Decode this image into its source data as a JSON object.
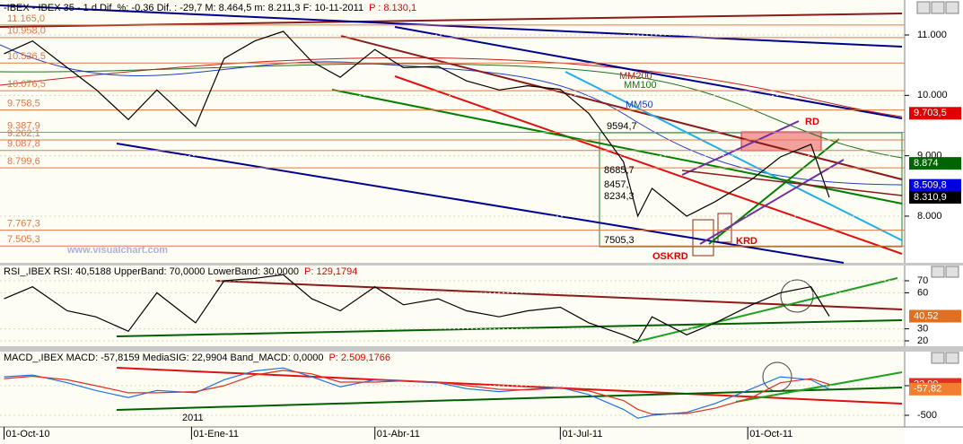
{
  "chart_data": [
    {
      "type": "line",
      "title": "-IBEX - IBEX 35 -   1 d Dif. %: -0,36 Dif. : -29,7 M: 8.464,5 m: 8.211,3 F: 10-11-2011",
      "title_p": "P : 8.130,1",
      "x": [
        "2010-10-01",
        "2010-10-15",
        "2010-11-01",
        "2010-11-15",
        "2010-12-01",
        "2010-12-15",
        "2011-01-03",
        "2011-01-17",
        "2011-02-01",
        "2011-02-15",
        "2011-03-01",
        "2011-03-15",
        "2011-04-01",
        "2011-04-15",
        "2011-05-02",
        "2011-05-16",
        "2011-06-01",
        "2011-06-15",
        "2011-07-01",
        "2011-07-15",
        "2011-08-01",
        "2011-08-08",
        "2011-08-15",
        "2011-09-01",
        "2011-09-15",
        "2011-10-03",
        "2011-10-17",
        "2011-11-01",
        "2011-11-10"
      ],
      "values": [
        10690,
        10900,
        10460,
        10100,
        9600,
        10090,
        9490,
        10610,
        10900,
        11060,
        10560,
        10300,
        10760,
        10460,
        10480,
        10240,
        10090,
        10160,
        10100,
        9700,
        8900,
        8000,
        8460,
        8000,
        8240,
        8610,
        8980,
        9190,
        8310
      ],
      "color": "#000000",
      "xlim": [
        "2010-09-29",
        "2011-12-17"
      ],
      "ylim": [
        7227,
        11312
      ],
      "yticks": [
        {
          "value": 11000,
          "label": "11.000"
        },
        {
          "value": 10000,
          "label": "10.000"
        },
        {
          "value": 9000,
          "label": "9.000"
        },
        {
          "value": 8000,
          "label": "8.000"
        }
      ],
      "level_color": "#e07848",
      "levels": [
        {
          "value": 11165,
          "label": "11.165,0"
        },
        {
          "value": 10958,
          "label": "10.958,0"
        },
        {
          "value": 10536.5,
          "label": "10.536,5"
        },
        {
          "value": 10076.5,
          "label": "10.076,5"
        },
        {
          "value": 9758.5,
          "label": "9.758,5"
        },
        {
          "value": 9387.9,
          "label": "9.387,9"
        },
        {
          "value": 9262.1,
          "label": "9.262,1"
        },
        {
          "value": 9087.8,
          "label": "9.087,8"
        },
        {
          "value": 8799.6,
          "label": "8.799,6"
        },
        {
          "value": 7767.3,
          "label": "7.767,3"
        },
        {
          "value": 7505.3,
          "label": "7.505,3"
        }
      ],
      "markers": [
        {
          "value": 9703.5,
          "label": "9.703,5",
          "color": "#e00000"
        },
        {
          "value": 8874,
          "label": "8.874",
          "color": "#006400"
        },
        {
          "value": 8509.8,
          "label": "8.509,8",
          "color": "#0000e0"
        },
        {
          "value": 8310.9,
          "label": "8.310,9",
          "color": "#000000"
        }
      ],
      "annotations": [
        {
          "text": "MM200"
        },
        {
          "text": "MM100"
        },
        {
          "text": "MM50"
        },
        {
          "text": "RD"
        },
        {
          "text": "KRD"
        },
        {
          "text": "OSKRD"
        },
        {
          "text": "9594,7"
        },
        {
          "text": "8685,7"
        },
        {
          "text": "8457,"
        },
        {
          "text": "8234,3"
        },
        {
          "text": "7505,3"
        },
        {
          "text": "www.visualchart.com"
        }
      ]
    },
    {
      "type": "line",
      "title": "RSI_,IBEX RSI: 40,5188 UpperBand: 70,0000 LowerBand: 30,0000",
      "title_p": "P: 129,1794",
      "x": [
        "2010-10-01",
        "2010-10-15",
        "2010-11-01",
        "2010-11-15",
        "2010-12-01",
        "2010-12-15",
        "2011-01-03",
        "2011-01-17",
        "2011-02-01",
        "2011-02-15",
        "2011-03-01",
        "2011-03-15",
        "2011-04-01",
        "2011-04-15",
        "2011-05-02",
        "2011-05-16",
        "2011-06-01",
        "2011-06-15",
        "2011-07-01",
        "2011-07-15",
        "2011-08-01",
        "2011-08-08",
        "2011-08-15",
        "2011-09-01",
        "2011-09-15",
        "2011-10-03",
        "2011-10-17",
        "2011-11-01",
        "2011-11-10"
      ],
      "values": [
        55,
        65,
        45,
        40,
        28,
        60,
        35,
        70,
        72,
        75,
        55,
        45,
        65,
        50,
        55,
        45,
        40,
        45,
        48,
        35,
        25,
        20,
        40,
        25,
        35,
        50,
        60,
        65,
        40.52
      ],
      "color": "#000000",
      "xlim": [
        "2010-09-29",
        "2011-12-17"
      ],
      "ylim": [
        15.5,
        82.7
      ],
      "yticks": [
        70,
        60,
        30,
        20
      ],
      "markers": [
        {
          "value": 40.52,
          "label": "40,52",
          "color": "#e07020"
        }
      ]
    },
    {
      "type": "line",
      "title": "MACD_,IBEX MACD: -57,8159 MediaSIG: 22,9904 Band_MACD: 0,0000",
      "title_p": "P: 2.509,1766",
      "x": [
        "2010-10-01",
        "2010-10-15",
        "2010-11-01",
        "2010-11-15",
        "2010-12-01",
        "2010-12-15",
        "2011-01-03",
        "2011-01-17",
        "2011-02-01",
        "2011-02-15",
        "2011-03-01",
        "2011-03-15",
        "2011-04-01",
        "2011-04-15",
        "2011-05-02",
        "2011-05-16",
        "2011-06-01",
        "2011-06-15",
        "2011-07-01",
        "2011-07-15",
        "2011-08-01",
        "2011-08-08",
        "2011-08-15",
        "2011-09-01",
        "2011-09-15",
        "2011-10-03",
        "2011-10-17",
        "2011-11-01",
        "2011-11-10"
      ],
      "series": [
        {
          "color": "#2070e0",
          "values": [
            150,
            180,
            50,
            -80,
            -200,
            -80,
            -120,
            100,
            250,
            300,
            150,
            -20,
            100,
            80,
            50,
            -50,
            -100,
            -60,
            -30,
            -150,
            -400,
            -550,
            -500,
            -450,
            -300,
            -50,
            150,
            100,
            -57.82
          ]
        },
        {
          "color": "#e03020",
          "values": [
            120,
            160,
            100,
            0,
            -120,
            -120,
            -100,
            0,
            180,
            260,
            200,
            60,
            60,
            80,
            60,
            0,
            -60,
            -70,
            -40,
            -90,
            -250,
            -400,
            -480,
            -470,
            -380,
            -200,
            50,
            120,
            22.99
          ]
        }
      ],
      "xlim": [
        "2010-09-29",
        "2011-12-17"
      ],
      "ylim": [
        -697,
        576
      ],
      "yticks": [
        0,
        -500
      ],
      "markers": [
        {
          "value": 22.99,
          "label": "22,99",
          "color": "#e03020"
        },
        {
          "value": -57.82,
          "label": "-57,82",
          "color": "#f08030"
        }
      ],
      "xticks": [
        {
          "value": "2010-10-01",
          "label": "01-Oct-10"
        },
        {
          "value": "2011-01-01",
          "label": "01-Ene-11"
        },
        {
          "value": "2011-04-01",
          "label": "01-Abr-11"
        },
        {
          "value": "2011-07-01",
          "label": "01-Jul-11"
        },
        {
          "value": "2011-10-01",
          "label": "01-Oct-11"
        }
      ],
      "annotations": [
        {
          "text": "2011"
        }
      ]
    }
  ]
}
